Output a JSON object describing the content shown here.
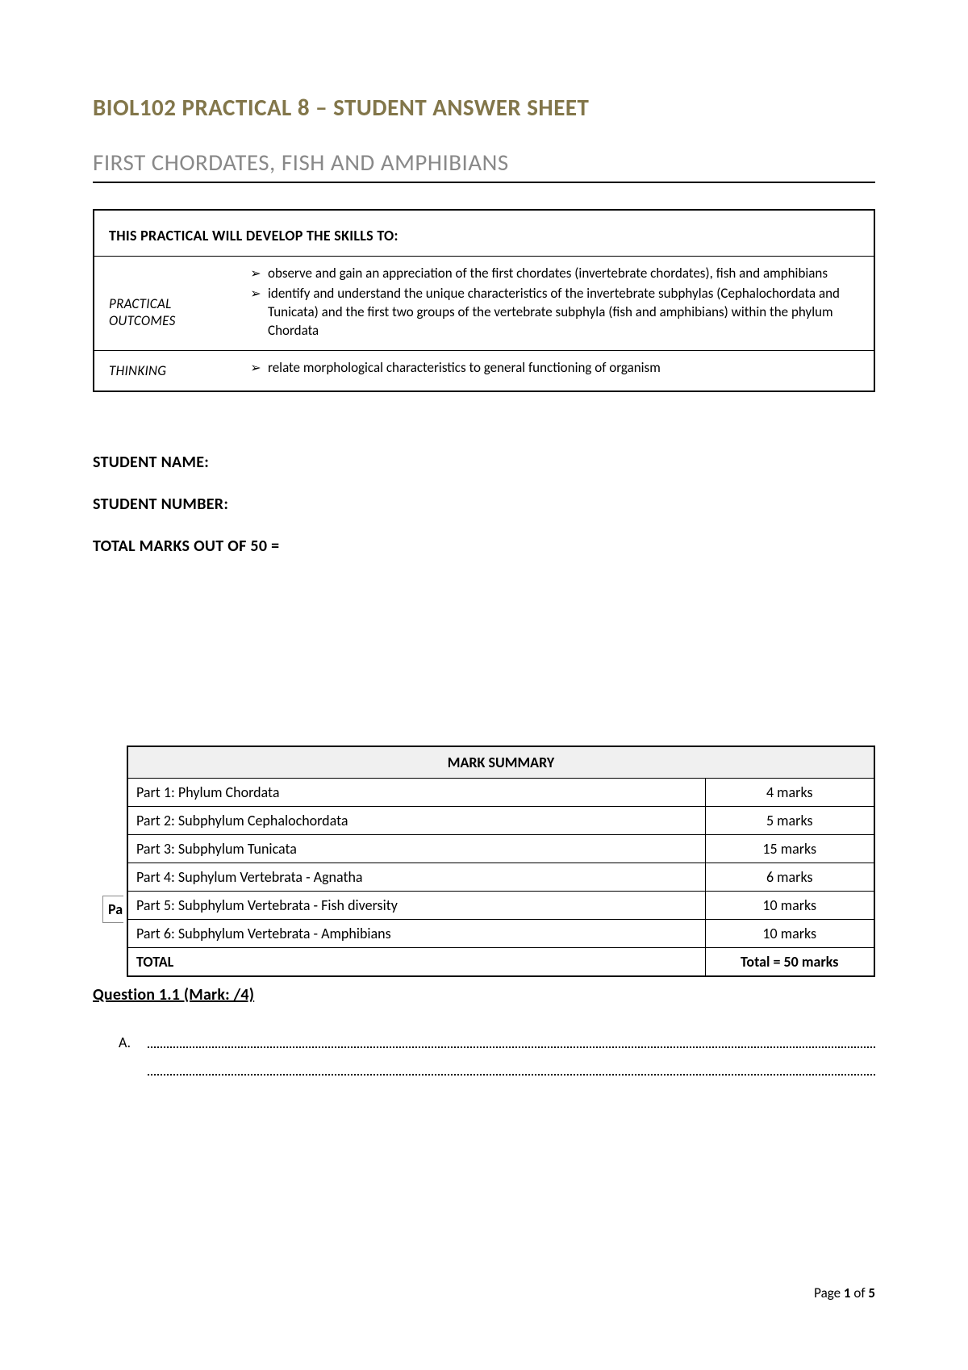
{
  "colors": {
    "title_main": "#82764a",
    "title_sub": "#898989",
    "text": "#000000",
    "background": "#ffffff",
    "table_header_bg": "#f0f0f0",
    "border": "#000000"
  },
  "typography": {
    "title_fontsize": 29,
    "body_fontsize": 18,
    "field_fontsize": 20,
    "font_family": "Calibri"
  },
  "titles": {
    "main": "BIOL102 PRACTICAL 8 – STUDENT ANSWER SHEET",
    "sub": "FIRST CHORDATES, FISH AND AMPHIBIANS"
  },
  "skills": {
    "header": "THIS PRACTICAL WILL DEVELOP THE SKILLS TO:",
    "rows": [
      {
        "label": "PRACTICAL OUTCOMES",
        "bullets": [
          "observe and gain an appreciation of the first chordates (invertebrate chordates), fish and amphibians",
          "identify and understand the unique characteristics of the invertebrate subphylas (Cephalochordata and Tunicata) and the first two groups of the vertebrate subphyla (fish and amphibians) within the phylum Chordata"
        ]
      },
      {
        "label": "THINKING",
        "bullets": [
          "relate morphological characteristics to general functioning of organism"
        ]
      }
    ]
  },
  "fields": {
    "name": "STUDENT NAME:",
    "number": "STUDENT NUMBER:",
    "total": "TOTAL MARKS OUT OF 50 ="
  },
  "mark_summary": {
    "header": "MARK SUMMARY",
    "fragment": "Pa",
    "rows": [
      {
        "part": "Part 1: Phylum Chordata",
        "marks": "4 marks"
      },
      {
        "part": "Part 2: Subphylum Cephalochordata",
        "marks": "5 marks"
      },
      {
        "part": "Part 3: Subphylum Tunicata",
        "marks": "15 marks"
      },
      {
        "part": "Part 4: Suphylum Vertebrata - Agnatha",
        "marks": "6 marks"
      },
      {
        "part": "Part 5:  Subphylum Vertebrata - Fish diversity",
        "marks": "10 marks"
      },
      {
        "part": "Part 6:  Subphylum Vertebrata - Amphibians",
        "marks": "10 marks"
      }
    ],
    "total_label": "TOTAL",
    "total_value": "Total = 50 marks"
  },
  "question": {
    "heading": "Question 1.1 (Mark:    /4)",
    "letter": "A."
  },
  "footer": {
    "prefix": "Page ",
    "current": "1",
    "of": " of ",
    "total": "5"
  }
}
